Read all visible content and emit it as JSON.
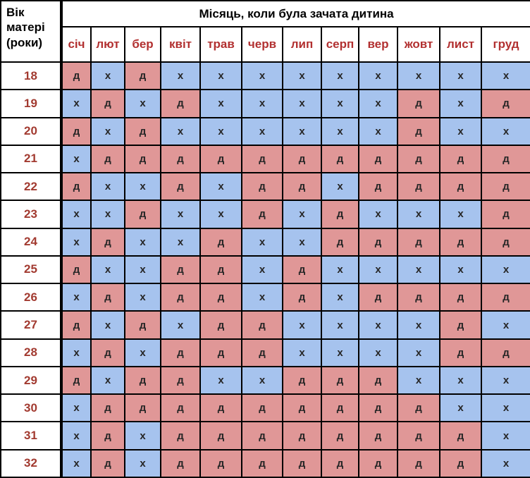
{
  "colors": {
    "girl_cell": "#e09797",
    "boy_cell": "#a6c3ee",
    "month_label_red": "#b23030",
    "age_label_red": "#a23a30",
    "cell_letter": "#262626",
    "grid_line": "#000000",
    "header_background": "#ffffff"
  },
  "chart_data": {
    "type": "table",
    "corner_header": "Вік матері (роки)",
    "column_group_title": "Місяць, коли була зачата дитина",
    "columns": [
      "січ",
      "лют",
      "бер",
      "квіт",
      "трав",
      "черв",
      "лип",
      "серп",
      "вер",
      "жовт",
      "лист",
      "груд"
    ],
    "cell_colors": {
      "д": "#e09797",
      "х": "#a6c3ee"
    },
    "rows": [
      {
        "age": "18",
        "cells": [
          "д",
          "х",
          "д",
          "х",
          "х",
          "х",
          "х",
          "х",
          "х",
          "х",
          "х",
          "х"
        ]
      },
      {
        "age": "19",
        "cells": [
          "х",
          "д",
          "х",
          "д",
          "х",
          "х",
          "х",
          "х",
          "х",
          "д",
          "х",
          "д"
        ]
      },
      {
        "age": "20",
        "cells": [
          "д",
          "х",
          "д",
          "х",
          "х",
          "х",
          "х",
          "х",
          "х",
          "д",
          "х",
          "х"
        ]
      },
      {
        "age": "21",
        "cells": [
          "х",
          "д",
          "д",
          "д",
          "д",
          "д",
          "д",
          "д",
          "д",
          "д",
          "д",
          "д"
        ]
      },
      {
        "age": "22",
        "cells": [
          "д",
          "х",
          "х",
          "д",
          "х",
          "д",
          "д",
          "х",
          "д",
          "д",
          "д",
          "д"
        ]
      },
      {
        "age": "23",
        "cells": [
          "х",
          "х",
          "д",
          "х",
          "х",
          "д",
          "х",
          "д",
          "х",
          "х",
          "х",
          "д"
        ]
      },
      {
        "age": "24",
        "cells": [
          "х",
          "д",
          "х",
          "х",
          "д",
          "х",
          "х",
          "д",
          "д",
          "д",
          "д",
          "д"
        ]
      },
      {
        "age": "25",
        "cells": [
          "д",
          "х",
          "х",
          "д",
          "д",
          "х",
          "д",
          "х",
          "х",
          "х",
          "х",
          "х"
        ]
      },
      {
        "age": "26",
        "cells": [
          "х",
          "д",
          "х",
          "д",
          "д",
          "х",
          "д",
          "х",
          "д",
          "д",
          "д",
          "д"
        ]
      },
      {
        "age": "27",
        "cells": [
          "д",
          "х",
          "д",
          "х",
          "д",
          "д",
          "х",
          "х",
          "х",
          "х",
          "д",
          "х"
        ]
      },
      {
        "age": "28",
        "cells": [
          "х",
          "д",
          "х",
          "д",
          "д",
          "д",
          "х",
          "х",
          "х",
          "х",
          "д",
          "д"
        ]
      },
      {
        "age": "29",
        "cells": [
          "д",
          "х",
          "д",
          "д",
          "х",
          "х",
          "д",
          "д",
          "д",
          "х",
          "х",
          "х"
        ]
      },
      {
        "age": "30",
        "cells": [
          "х",
          "д",
          "д",
          "д",
          "д",
          "д",
          "д",
          "д",
          "д",
          "д",
          "х",
          "х"
        ]
      },
      {
        "age": "31",
        "cells": [
          "х",
          "д",
          "х",
          "д",
          "д",
          "д",
          "д",
          "д",
          "д",
          "д",
          "д",
          "х"
        ]
      },
      {
        "age": "32",
        "cells": [
          "х",
          "д",
          "х",
          "д",
          "д",
          "д",
          "д",
          "д",
          "д",
          "д",
          "д",
          "х"
        ]
      }
    ]
  }
}
